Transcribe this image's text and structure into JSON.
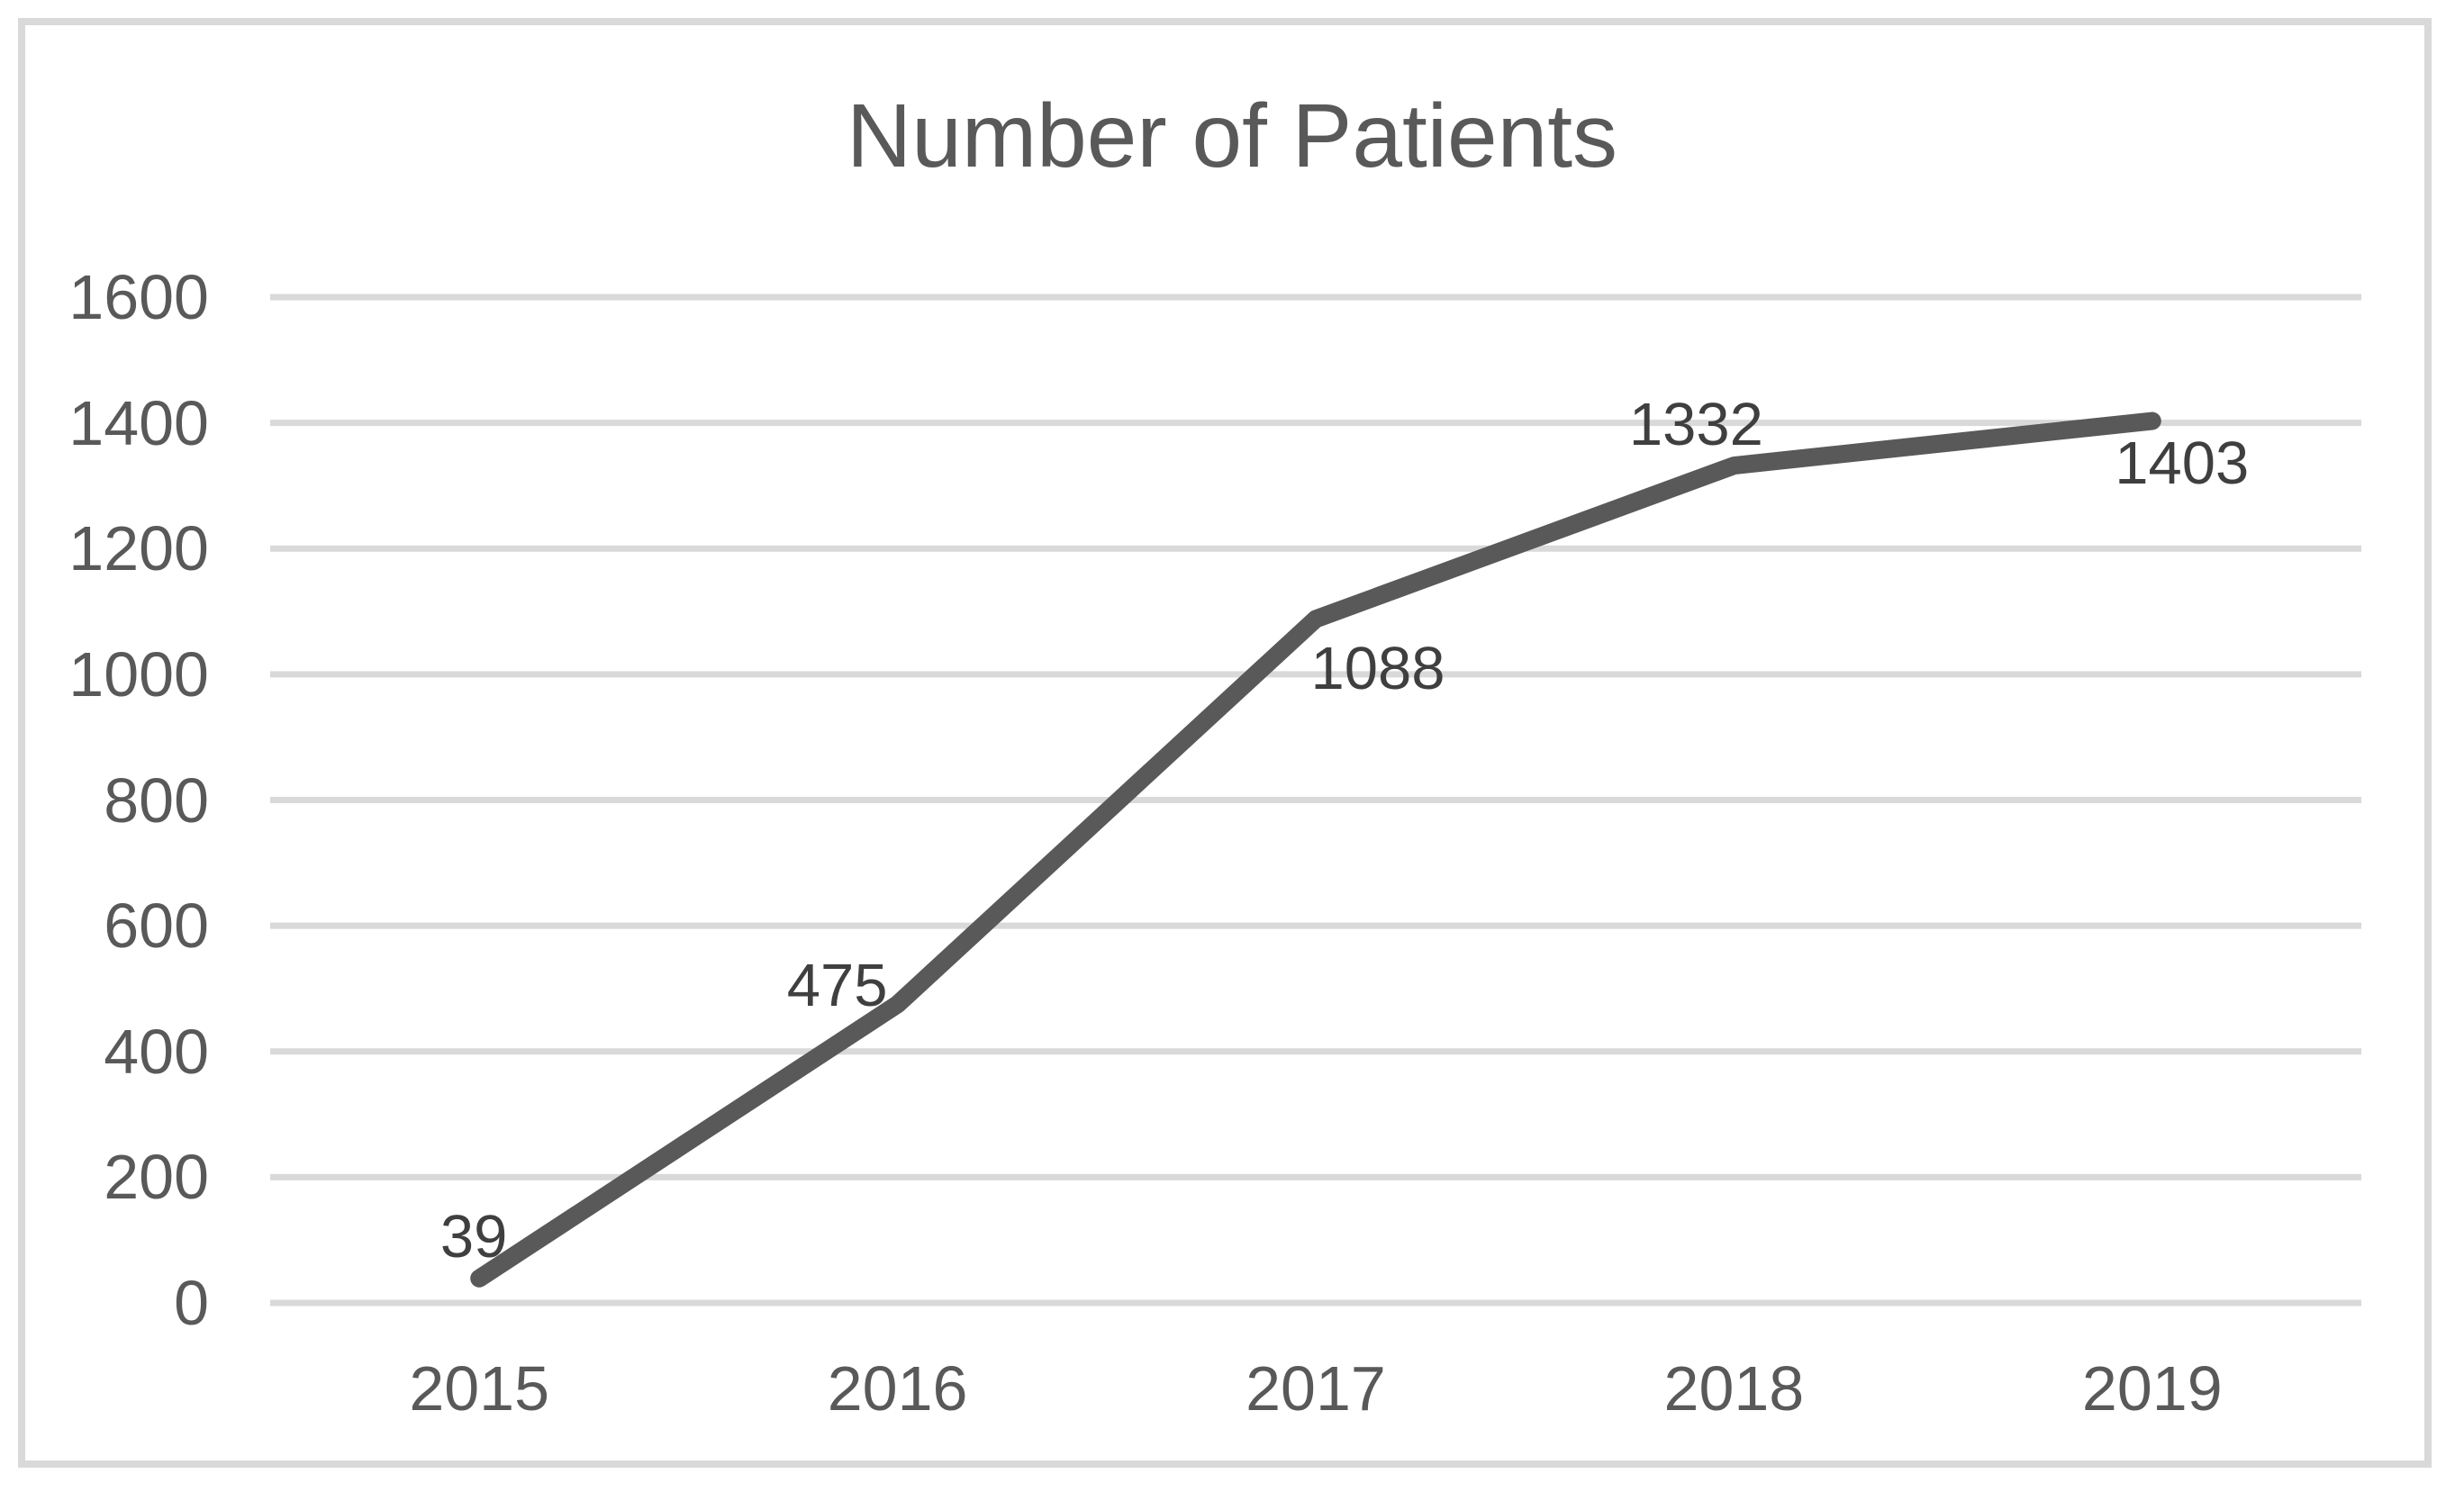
{
  "chart_data": {
    "type": "line",
    "title": "Number of Patients",
    "categories": [
      "2015",
      "2016",
      "2017",
      "2018",
      "2019"
    ],
    "series": [
      {
        "name": "Number of Patients",
        "values": [
          39,
          475,
          1088,
          1332,
          1403
        ]
      }
    ],
    "data_labels": [
      "39",
      "475",
      "1088",
      "1332",
      "1403"
    ],
    "yticks": [
      0,
      200,
      400,
      600,
      800,
      1000,
      1200,
      1400,
      1600
    ],
    "ylim": [
      0,
      1600
    ],
    "xlabel": "",
    "ylabel": "",
    "grid": "horizontal-only",
    "legend": "none",
    "colors": {
      "line": "#595959",
      "gridline": "#d9d9d9",
      "frame_border": "#d9d9d9",
      "axis_text": "#595959",
      "data_label_text": "#3f3f3f",
      "title_text": "#595959",
      "background": "#ffffff"
    }
  }
}
